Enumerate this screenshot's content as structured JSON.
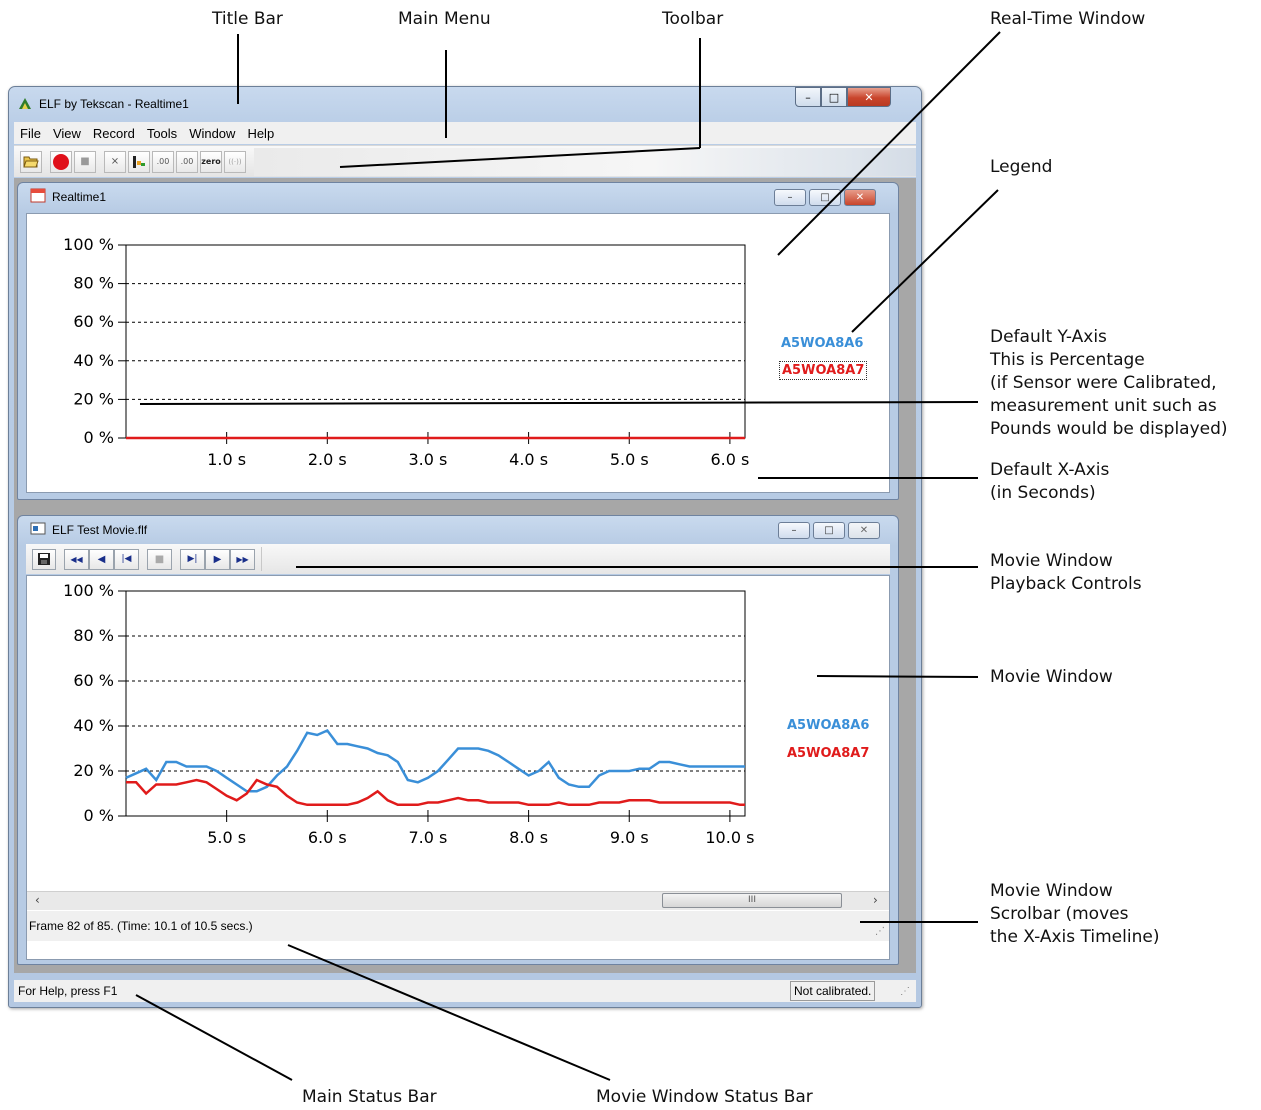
{
  "callouts": {
    "title_bar": "Title Bar",
    "main_menu": "Main Menu",
    "toolbar": "Toolbar",
    "realtime_window": "Real-Time Window",
    "legend": "Legend",
    "y_axis": "Default Y-Axis\nThis is Percentage\n(if Sensor were Calibrated,\nmeasurement unit such as\nPounds would be displayed)",
    "x_axis": "Default X-Axis\n(in Seconds)",
    "playback_controls": "Movie Window\nPlayback Controls",
    "movie_window": "Movie Window",
    "movie_scrollbar": "Movie Window\nScrolbar (moves\nthe X-Axis Timeline)",
    "main_status_bar": "Main Status Bar",
    "movie_status_bar": "Movie Window Status Bar"
  },
  "app": {
    "title": "ELF by Tekscan - Realtime1",
    "caption": {
      "minimize": "–",
      "maximize": "□",
      "close": "✕"
    }
  },
  "menu": [
    "File",
    "View",
    "Record",
    "Tools",
    "Window",
    "Help"
  ],
  "toolbar_buttons": [
    {
      "name": "open-file-button",
      "icon": "folder-open-icon",
      "glyph": "▰"
    },
    {
      "name": "record-button",
      "icon": "record-icon",
      "glyph": ""
    },
    {
      "name": "stop-button",
      "icon": "stop-icon",
      "glyph": "■"
    },
    {
      "name": "sensor-map-button",
      "icon": "sensor-icon",
      "glyph": "⨯"
    },
    {
      "name": "level-button",
      "icon": "level-icon",
      "glyph": "▙"
    },
    {
      "name": "threshold-button-1",
      "icon": "threshold-icon",
      "glyph": ".00"
    },
    {
      "name": "threshold-button-2",
      "icon": "threshold-icon",
      "glyph": ".00"
    },
    {
      "name": "zero-button",
      "icon": "zero-icon",
      "glyph": "zero"
    },
    {
      "name": "wireless-button",
      "icon": "wireless-icon",
      "glyph": "((·))"
    }
  ],
  "realtime": {
    "title": "Realtime1",
    "legend": [
      "A5WOA8A6",
      "A5WOA8A7"
    ]
  },
  "movie": {
    "title": "ELF Test Movie.flf",
    "legend": [
      "A5WOA8A6",
      "A5WOA8A7"
    ],
    "status": "Frame 82 of 85. (Time: 10.1 of 10.5 secs.)",
    "scroll_grip": "III",
    "scroll_left": "‹",
    "scroll_right": "›"
  },
  "playback_buttons": [
    {
      "name": "save-movie-button",
      "icon": "save-icon",
      "glyph": "💾"
    },
    {
      "name": "rewind-fast-button",
      "icon": "fast-rewind-icon",
      "glyph": "◀◀"
    },
    {
      "name": "step-back-button",
      "icon": "step-back-icon",
      "glyph": "◀"
    },
    {
      "name": "go-start-button",
      "icon": "go-start-icon",
      "glyph": "|◀"
    },
    {
      "name": "stop-playback-button",
      "icon": "stop-icon",
      "glyph": "■"
    },
    {
      "name": "go-end-button",
      "icon": "go-end-icon",
      "glyph": "▶|"
    },
    {
      "name": "play-button",
      "icon": "play-icon",
      "glyph": "▶"
    },
    {
      "name": "fast-forward-button",
      "icon": "fast-forward-icon",
      "glyph": "▶▶"
    }
  ],
  "main_status": {
    "help": "For Help, press F1",
    "calibration": "Not calibrated."
  },
  "colors": {
    "series_blue": "#3a8fd8",
    "series_red": "#e01b1b",
    "record_red": "#e0101a"
  },
  "chart_data": [
    {
      "type": "line",
      "title": "",
      "xlabel": "",
      "ylabel": "",
      "ylim": [
        0,
        100
      ],
      "xlim": [
        0,
        6.15
      ],
      "y_ticks": [
        "0 %",
        "20 %",
        "40 %",
        "60 %",
        "80 %",
        "100 %"
      ],
      "x_ticks": [
        "1.0 s",
        "2.0 s",
        "3.0 s",
        "4.0 s",
        "5.0 s",
        "6.0 s"
      ],
      "grid": "horizontal dashed",
      "legend": "right",
      "series": [
        {
          "name": "A5WOA8A6",
          "color": "#3a8fd8",
          "x": [],
          "y": []
        },
        {
          "name": "A5WOA8A7",
          "color": "#e01b1b",
          "x": [
            0,
            6.15
          ],
          "y": [
            0,
            0
          ]
        }
      ]
    },
    {
      "type": "line",
      "title": "",
      "xlabel": "",
      "ylabel": "",
      "ylim": [
        0,
        100
      ],
      "xlim": [
        4,
        10.15
      ],
      "y_ticks": [
        "0 %",
        "20 %",
        "40 %",
        "60 %",
        "80 %",
        "100 %"
      ],
      "x_ticks": [
        "5.0 s",
        "6.0 s",
        "7.0 s",
        "8.0 s",
        "9.0 s",
        "10.0 s"
      ],
      "grid": "horizontal dashed",
      "legend": "right",
      "series": [
        {
          "name": "A5WOA8A6",
          "color": "#3a8fd8",
          "x": [
            4.0,
            4.1,
            4.2,
            4.3,
            4.4,
            4.5,
            4.6,
            4.7,
            4.8,
            4.9,
            5.0,
            5.1,
            5.2,
            5.3,
            5.4,
            5.5,
            5.6,
            5.7,
            5.8,
            5.9,
            6.0,
            6.1,
            6.2,
            6.3,
            6.4,
            6.5,
            6.6,
            6.7,
            6.8,
            6.9,
            7.0,
            7.1,
            7.2,
            7.3,
            7.4,
            7.5,
            7.6,
            7.7,
            7.8,
            7.9,
            8.0,
            8.1,
            8.2,
            8.3,
            8.4,
            8.5,
            8.6,
            8.7,
            8.8,
            8.9,
            9.0,
            9.1,
            9.2,
            9.3,
            9.4,
            9.5,
            9.6,
            9.7,
            9.8,
            9.9,
            10.0,
            10.1,
            10.15
          ],
          "y": [
            17,
            19,
            21,
            16,
            24,
            24,
            22,
            22,
            22,
            20,
            17,
            14,
            11,
            11,
            13,
            18,
            22,
            29,
            37,
            36,
            38,
            32,
            32,
            31,
            30,
            28,
            27,
            24,
            16,
            15,
            17,
            20,
            25,
            30,
            30,
            30,
            29,
            27,
            24,
            21,
            18,
            20,
            24,
            17,
            14,
            13,
            13,
            18,
            20,
            20,
            20,
            21,
            21,
            24,
            24,
            23,
            22,
            22,
            22,
            22,
            22,
            22,
            22
          ]
        },
        {
          "name": "A5WOA8A7",
          "color": "#e01b1b",
          "x": [
            4.0,
            4.1,
            4.2,
            4.3,
            4.4,
            4.5,
            4.6,
            4.7,
            4.8,
            4.9,
            5.0,
            5.1,
            5.2,
            5.3,
            5.4,
            5.5,
            5.6,
            5.7,
            5.8,
            5.9,
            6.0,
            6.1,
            6.2,
            6.3,
            6.4,
            6.5,
            6.6,
            6.7,
            6.8,
            6.9,
            7.0,
            7.1,
            7.2,
            7.3,
            7.4,
            7.5,
            7.6,
            7.7,
            7.8,
            7.9,
            8.0,
            8.1,
            8.2,
            8.3,
            8.4,
            8.5,
            8.6,
            8.7,
            8.8,
            8.9,
            9.0,
            9.1,
            9.2,
            9.3,
            9.4,
            9.5,
            9.6,
            9.7,
            9.8,
            9.9,
            10.0,
            10.1,
            10.15
          ],
          "y": [
            15,
            15,
            10,
            14,
            14,
            14,
            15,
            16,
            15,
            12,
            9,
            7,
            10,
            16,
            14,
            13,
            9,
            6,
            5,
            5,
            5,
            5,
            5,
            6,
            8,
            11,
            7,
            5,
            5,
            5,
            6,
            6,
            7,
            8,
            7,
            7,
            6,
            6,
            6,
            6,
            5,
            5,
            5,
            6,
            5,
            5,
            5,
            6,
            6,
            6,
            7,
            7,
            7,
            6,
            6,
            6,
            6,
            6,
            6,
            6,
            6,
            5,
            5
          ]
        }
      ]
    }
  ]
}
